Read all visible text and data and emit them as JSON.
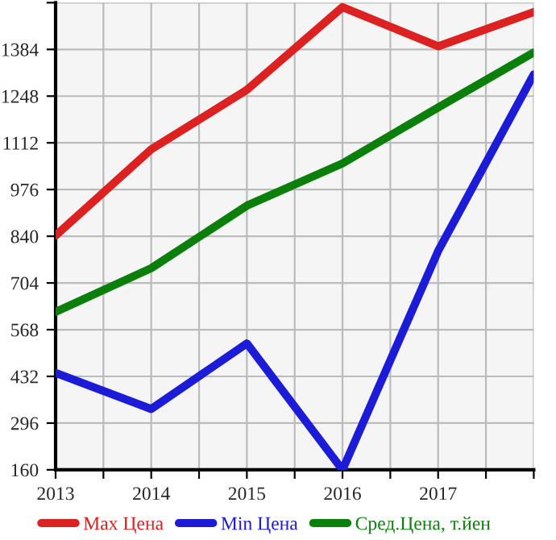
{
  "chart_data": {
    "type": "line",
    "x": [
      2013,
      2014,
      2015,
      2016,
      2017,
      2018
    ],
    "series": [
      {
        "name": "Max Цена",
        "color": "#dd2020",
        "values": [
          842,
          1093,
          1266,
          1507,
          1393,
          1493
        ]
      },
      {
        "name": "Min Цена",
        "color": "#1c1cd8",
        "values": [
          442,
          337,
          528,
          160,
          797,
          1311
        ]
      },
      {
        "name": "Сред.Цена, т.йен",
        "color": "#0a800a",
        "values": [
          620,
          747,
          929,
          1052,
          1215,
          1375
        ]
      }
    ],
    "xlim": [
      2013,
      2018
    ],
    "xticks": [
      2013,
      {
        "value": 2013.5,
        "label": null
      },
      2014,
      {
        "value": 2014.5,
        "label": null
      },
      2015,
      {
        "value": 2015.5,
        "label": null
      },
      2016,
      {
        "value": 2016.5,
        "label": null
      },
      2017,
      {
        "value": 2017.5,
        "label": null
      },
      {
        "value": 2018,
        "label": null
      }
    ],
    "ylim": [
      160,
      1520
    ],
    "yticks": [
      160,
      296,
      432,
      568,
      704,
      840,
      976,
      1112,
      1248,
      1384,
      {
        "value": 1520,
        "label": null
      }
    ],
    "grid": true,
    "legend": "bottom",
    "marker": "none",
    "line_style": "solid"
  }
}
